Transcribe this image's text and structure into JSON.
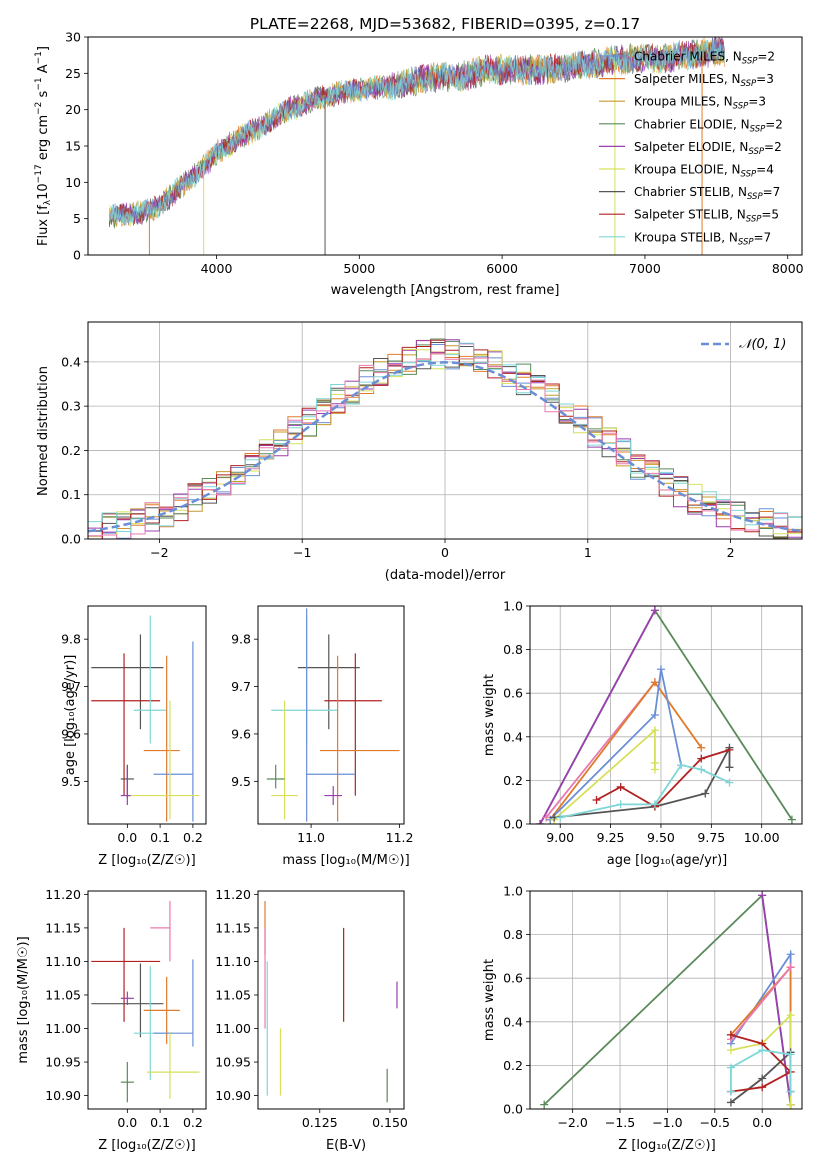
{
  "figure_title": "PLATE=2268, MJD=53682, FIBERID=0395, z=0.17",
  "colors": {
    "chabrier_miles": "#6a8fd6",
    "salpeter_miles": "#e07b2c",
    "kroupa_miles": "#c99a2e",
    "chabrier_elodie": "#5a8a5a",
    "salpeter_elodie": "#9a3fb0",
    "kroupa_elodie": "#d6e05a",
    "chabrier_stelib": "#555555",
    "salpeter_stelib": "#b22222",
    "kroupa_stelib": "#7fd6d6",
    "pink": "#e87ab0",
    "grid": "#b0b0b0"
  },
  "chart_data": [
    {
      "id": "spectrum",
      "type": "line",
      "title": "PLATE=2268, MJD=53682, FIBERID=0395, z=0.17",
      "xlabel": "wavelength [Angstrom, rest frame]",
      "ylabel": "Flux [f",
      "xlim": [
        3100,
        8100
      ],
      "ylim": [
        0,
        30
      ],
      "xticks": [
        4000,
        5000,
        6000,
        7000,
        8000
      ],
      "yticks": [
        0,
        5,
        10,
        15,
        20,
        25,
        30
      ],
      "grid": false,
      "legend_position": "top-right",
      "legend": [
        {
          "label": "Chabrier MILES, N",
          "sub": "SSP",
          "val": "=2",
          "color": "#6a8fd6"
        },
        {
          "label": "Salpeter MILES, N",
          "sub": "SSP",
          "val": "=3",
          "color": "#e07b2c"
        },
        {
          "label": "Kroupa MILES, N",
          "sub": "SSP",
          "val": "=3",
          "color": "#c99a2e"
        },
        {
          "label": "Chabrier ELODIE, N",
          "sub": "SSP",
          "val": "=2",
          "color": "#5a8a5a"
        },
        {
          "label": "Salpeter ELODIE, N",
          "sub": "SSP",
          "val": "=2",
          "color": "#9a3fb0"
        },
        {
          "label": "Kroupa ELODIE, N",
          "sub": "SSP",
          "val": "=4",
          "color": "#d6e05a"
        },
        {
          "label": "Chabrier STELIB, N",
          "sub": "SSP",
          "val": "=7",
          "color": "#555555"
        },
        {
          "label": "Salpeter STELIB, N",
          "sub": "SSP",
          "val": "=5",
          "color": "#b22222"
        },
        {
          "label": "Kroupa STELIB, N",
          "sub": "SSP",
          "val": "=7",
          "color": "#7fd6d6"
        }
      ],
      "continuum": {
        "x": [
          3250,
          3400,
          3550,
          3700,
          3850,
          4000,
          4150,
          4300,
          4500,
          4700,
          4900,
          5100,
          5300,
          5500,
          5700,
          5900,
          6100,
          6300,
          6500,
          6700,
          6900,
          7100,
          7300,
          7500
        ],
        "y": [
          5.3,
          5.6,
          6.2,
          8.5,
          11,
          14,
          16,
          17.5,
          20,
          21.5,
          22.5,
          23,
          23.5,
          24.5,
          24.5,
          25.5,
          25.5,
          25.5,
          26,
          26.5,
          27,
          27,
          27.5,
          28
        ]
      },
      "drops": [
        {
          "x": 3530,
          "color": "#e07b2c"
        },
        {
          "x": 3910,
          "color": "#d6e05a"
        },
        {
          "x": 4760,
          "color": "#555555"
        },
        {
          "x": 6790,
          "color": "#d6e05a"
        },
        {
          "x": 7400,
          "color": "#e07b2c"
        }
      ]
    },
    {
      "id": "residuals",
      "type": "histogram",
      "xlabel": "(data-model)/error",
      "ylabel": "Normed distribution",
      "xlim": [
        -2.5,
        2.5
      ],
      "ylim": [
        0,
        0.49
      ],
      "xticks": [
        -2,
        -1,
        0,
        1,
        2
      ],
      "yticks": [
        0.0,
        0.1,
        0.2,
        0.3,
        0.4
      ],
      "grid": true,
      "legend_position": "top-right",
      "legend": [
        {
          "label": "𝒩(0, 1)",
          "color": "#6a8fd6",
          "dash": true
        }
      ],
      "bin_width": 0.1
    },
    {
      "id": "age_vs_Z",
      "type": "errorbar",
      "xlabel": "Z [log₁₀(Z/Z☉)]",
      "ylabel": "age  [log₁₀(age/yr)]",
      "xlim": [
        -0.12,
        0.24
      ],
      "ylim": [
        9.41,
        9.87
      ],
      "xticks": [
        0.0,
        0.1,
        0.2
      ],
      "xticklabels": [
        "0.0",
        "0.1",
        "0.2"
      ],
      "yticks": [
        9.5,
        9.6,
        9.7,
        9.8
      ],
      "points": [
        {
          "x": 0.04,
          "y": 9.74,
          "xerr": [
            0.15,
            0.07
          ],
          "yerr": [
            0.13,
            0.07
          ],
          "color": "#555555"
        },
        {
          "x": -0.01,
          "y": 9.67,
          "xerr": [
            0.1,
            0.11
          ],
          "yerr": [
            0.2,
            0.1
          ],
          "color": "#b22222"
        },
        {
          "x": 0.07,
          "y": 9.65,
          "xerr": [
            0.05,
            0.05
          ],
          "yerr": [
            0.07,
            0.2
          ],
          "color": "#7fd6d6"
        },
        {
          "x": 0.12,
          "y": 9.565,
          "xerr": [
            0.07,
            0.04
          ],
          "yerr": [
            0.15,
            0.2
          ],
          "color": "#e07b2c"
        },
        {
          "x": 0.2,
          "y": 9.515,
          "xerr": [
            0.12,
            0.0
          ],
          "yerr": [
            0.1,
            0.28
          ],
          "color": "#6a8fd6"
        },
        {
          "x": 0.13,
          "y": 9.47,
          "xerr": [
            0.13,
            0.09
          ],
          "yerr": [
            0.05,
            0.2
          ],
          "color": "#d6e05a"
        },
        {
          "x": 0.0,
          "y": 9.505,
          "xerr": [
            0.02,
            0.02
          ],
          "yerr": [
            0.04,
            0.03
          ],
          "color": "#555555"
        },
        {
          "x": 0.0,
          "y": 9.47,
          "xerr": [
            0.02,
            0.01
          ],
          "yerr": [
            0.02,
            0.06
          ],
          "color": "#9a3fb0"
        }
      ]
    },
    {
      "id": "age_vs_mass",
      "type": "errorbar",
      "xlabel": "mass [log₁₀(M/M☉)]",
      "ylabel": "",
      "xlim": [
        10.88,
        11.21
      ],
      "ylim": [
        9.41,
        9.87
      ],
      "xticks": [
        11.0,
        11.2
      ],
      "xticklabels": [
        "11.0",
        "11.2"
      ],
      "yticks": [
        9.5,
        9.6,
        9.7,
        9.8
      ],
      "points": [
        {
          "x": 11.04,
          "y": 9.74,
          "xerr": [
            0.07,
            0.07
          ],
          "yerr": [
            0.13,
            0.07
          ],
          "color": "#555555"
        },
        {
          "x": 11.1,
          "y": 9.67,
          "xerr": [
            0.07,
            0.06
          ],
          "yerr": [
            0.2,
            0.1
          ],
          "color": "#b22222"
        },
        {
          "x": 10.99,
          "y": 9.65,
          "xerr": [
            0.08,
            0.07
          ],
          "yerr": [
            0.07,
            0.2
          ],
          "color": "#7fd6d6"
        },
        {
          "x": 11.06,
          "y": 9.565,
          "xerr": [
            0.04,
            0.14
          ],
          "yerr": [
            0.15,
            0.2
          ],
          "color": "#e07b2c"
        },
        {
          "x": 10.99,
          "y": 9.515,
          "xerr": [
            0.0,
            0.11
          ],
          "yerr": [
            0.1,
            0.35
          ],
          "color": "#6a8fd6"
        },
        {
          "x": 10.94,
          "y": 9.47,
          "xerr": [
            0.03,
            0.03
          ],
          "yerr": [
            0.05,
            0.2
          ],
          "color": "#d6e05a"
        },
        {
          "x": 10.92,
          "y": 9.505,
          "xerr": [
            0.02,
            0.02
          ],
          "yerr": [
            0.02,
            0.03
          ],
          "color": "#5a8a5a"
        },
        {
          "x": 11.05,
          "y": 9.47,
          "xerr": [
            0.02,
            0.02
          ],
          "yerr": [
            0.02,
            0.02
          ],
          "color": "#9a3fb0"
        }
      ]
    },
    {
      "id": "weight_vs_age",
      "type": "line",
      "xlabel": "age  [log₁₀(age/yr)]",
      "ylabel": "mass weight",
      "xlim": [
        8.85,
        10.2
      ],
      "ylim": [
        0,
        1
      ],
      "xticks": [
        9.0,
        9.25,
        9.5,
        9.75,
        10.0
      ],
      "xticklabels": [
        "9.00",
        "9.25",
        "9.50",
        "9.75",
        "10.00"
      ],
      "yticks": [
        0.0,
        0.2,
        0.4,
        0.6,
        0.8,
        1.0
      ],
      "grid": true,
      "series": [
        {
          "color": "#5a8a5a",
          "x": [
            8.9,
            9.47,
            10.15
          ],
          "y": [
            0,
            0.98,
            0.02
          ]
        },
        {
          "color": "#9a3fb0",
          "x": [
            8.9,
            9.47
          ],
          "y": [
            0,
            0.98
          ]
        },
        {
          "color": "#e87ab0",
          "x": [
            8.93,
            9.47
          ],
          "y": [
            0.03,
            0.65
          ]
        },
        {
          "color": "#e07b2c",
          "x": [
            8.95,
            9.47,
            9.7
          ],
          "y": [
            0.02,
            0.65,
            0.35
          ]
        },
        {
          "color": "#6a8fd6",
          "x": [
            8.95,
            9.47,
            9.5,
            9.6
          ],
          "y": [
            0.02,
            0.5,
            0.71,
            0.27
          ]
        },
        {
          "color": "#d6e05a",
          "x": [
            8.97,
            9.47,
            9.47,
            9.47
          ],
          "y": [
            0.02,
            0.43,
            0.28,
            0.25
          ]
        },
        {
          "color": "#555555",
          "x": [
            8.97,
            9.47,
            9.72,
            9.84,
            9.84
          ],
          "y": [
            0.03,
            0.08,
            0.14,
            0.35,
            0.26
          ]
        },
        {
          "color": "#b22222",
          "x": [
            9.18,
            9.3,
            9.47,
            9.7,
            9.84
          ],
          "y": [
            0.11,
            0.17,
            0.08,
            0.3,
            0.34
          ]
        },
        {
          "color": "#7fd6d6",
          "x": [
            9.0,
            9.3,
            9.47,
            9.6,
            9.7,
            9.84
          ],
          "y": [
            0.03,
            0.09,
            0.09,
            0.27,
            0.25,
            0.19
          ]
        }
      ]
    },
    {
      "id": "mass_vs_Z",
      "type": "errorbar",
      "xlabel": "Z [log₁₀(Z/Z☉)]",
      "ylabel": "mass [log₁₀(M/M☉)]",
      "xlim": [
        -0.12,
        0.24
      ],
      "ylim": [
        10.88,
        11.205
      ],
      "xticks": [
        0.0,
        0.1,
        0.2
      ],
      "xticklabels": [
        "0.0",
        "0.1",
        "0.2"
      ],
      "yticks": [
        10.9,
        10.95,
        11.0,
        11.05,
        11.1,
        11.15,
        11.2
      ],
      "points": [
        {
          "x": -0.01,
          "y": 11.1,
          "xerr": [
            0.1,
            0.11
          ],
          "yerr": [
            0.09,
            0.05
          ],
          "color": "#b22222"
        },
        {
          "x": 0.04,
          "y": 11.037,
          "xerr": [
            0.15,
            0.07
          ],
          "yerr": [
            0.05,
            0.06
          ],
          "color": "#555555"
        },
        {
          "x": 0.07,
          "y": 10.993,
          "xerr": [
            0.05,
            0.07
          ],
          "yerr": [
            0.07,
            0.1
          ],
          "color": "#7fd6d6"
        },
        {
          "x": 0.13,
          "y": 11.15,
          "xerr": [
            0.06,
            0.0
          ],
          "yerr": [
            0.05,
            0.04
          ],
          "color": "#e87ab0"
        },
        {
          "x": 0.12,
          "y": 11.027,
          "xerr": [
            0.07,
            0.04
          ],
          "yerr": [
            0.05,
            0.05
          ],
          "color": "#e07b2c"
        },
        {
          "x": 0.2,
          "y": 10.993,
          "xerr": [
            0.12,
            0.0
          ],
          "yerr": [
            0.02,
            0.11
          ],
          "color": "#6a8fd6"
        },
        {
          "x": 0.13,
          "y": 10.935,
          "xerr": [
            0.07,
            0.09
          ],
          "yerr": [
            0.04,
            0.06
          ],
          "color": "#d6e05a"
        },
        {
          "x": 0.0,
          "y": 10.92,
          "xerr": [
            0.02,
            0.02
          ],
          "yerr": [
            0.03,
            0.03
          ],
          "color": "#5a8a5a"
        },
        {
          "x": 0.0,
          "y": 11.045,
          "xerr": [
            0.02,
            0.02
          ],
          "yerr": [
            0.01,
            0.01
          ],
          "color": "#9a3fb0"
        }
      ]
    },
    {
      "id": "mass_vs_ebv",
      "type": "errorbar",
      "xlabel": "E(B-V)",
      "ylabel": "",
      "xlim": [
        0.103,
        0.155
      ],
      "ylim": [
        10.88,
        11.205
      ],
      "xticks": [
        0.125,
        0.15
      ],
      "xticklabels": [
        "0.125",
        "0.150"
      ],
      "yticks": [
        10.9,
        10.95,
        11.0,
        11.05,
        11.1,
        11.15,
        11.2
      ],
      "points": [
        {
          "x": 0.1055,
          "y": 11.15,
          "xerr": [
            0,
            0
          ],
          "yerr": [
            0.04,
            0.04
          ],
          "color": "#e07b2c"
        },
        {
          "x": 0.1055,
          "y": 11.1,
          "xerr": [
            0,
            0
          ],
          "yerr": [
            0.1,
            0.05
          ],
          "color": "#e87ab0"
        },
        {
          "x": 0.1063,
          "y": 11.0,
          "xerr": [
            0,
            0
          ],
          "yerr": [
            0.1,
            0.1
          ],
          "color": "#7fd6d6"
        },
        {
          "x": 0.111,
          "y": 10.95,
          "xerr": [
            0,
            0
          ],
          "yerr": [
            0.05,
            0.05
          ],
          "color": "#d6e05a"
        },
        {
          "x": 0.1335,
          "y": 11.06,
          "xerr": [
            0,
            0
          ],
          "yerr": [
            0.05,
            0.09
          ],
          "color": "#b22222"
        },
        {
          "x": 0.149,
          "y": 10.915,
          "xerr": [
            0,
            0
          ],
          "yerr": [
            0.025,
            0.025
          ],
          "color": "#5a8a5a"
        },
        {
          "x": 0.1525,
          "y": 11.05,
          "xerr": [
            0,
            0
          ],
          "yerr": [
            0.02,
            0.02
          ],
          "color": "#9a3fb0"
        }
      ]
    },
    {
      "id": "weight_vs_Z",
      "type": "line",
      "xlabel": "Z [log₁₀(Z/Z☉)]",
      "ylabel": "mass weight",
      "xlim": [
        -2.45,
        0.42
      ],
      "ylim": [
        0,
        1
      ],
      "xticks": [
        -2.0,
        -1.5,
        -1.0,
        -0.5,
        0.0
      ],
      "xticklabels": [
        "−2.0",
        "−1.5",
        "−1.0",
        "−0.5",
        "0.0"
      ],
      "yticks": [
        0.0,
        0.2,
        0.4,
        0.6,
        0.8,
        1.0
      ],
      "grid": true,
      "series": [
        {
          "color": "#5a8a5a",
          "x": [
            -2.3,
            0.0,
            0.3
          ],
          "y": [
            0.02,
            0.98,
            0.02
          ]
        },
        {
          "color": "#9a3fb0",
          "x": [
            0.0,
            0.3
          ],
          "y": [
            0.98,
            0.02
          ]
        },
        {
          "color": "#6a8fd6",
          "x": [
            -0.33,
            0.3,
            0.3
          ],
          "y": [
            0.3,
            0.71,
            0.02
          ]
        },
        {
          "color": "#e07b2c",
          "x": [
            -0.33,
            0.3,
            0.3
          ],
          "y": [
            0.34,
            0.65,
            0.02
          ]
        },
        {
          "color": "#e87ab0",
          "x": [
            -0.33,
            0.3
          ],
          "y": [
            0.32,
            0.65
          ]
        },
        {
          "color": "#d6e05a",
          "x": [
            -0.33,
            0.0,
            0.3,
            0.3
          ],
          "y": [
            0.27,
            0.3,
            0.43,
            0.02
          ]
        },
        {
          "color": "#555555",
          "x": [
            -0.33,
            0.0,
            0.3,
            0.3
          ],
          "y": [
            0.03,
            0.14,
            0.26,
            0.08
          ]
        },
        {
          "color": "#b22222",
          "x": [
            -0.33,
            0.0,
            0.3,
            0.0,
            -0.33
          ],
          "y": [
            0.34,
            0.3,
            0.17,
            0.1,
            0.08
          ]
        },
        {
          "color": "#7fd6d6",
          "x": [
            -0.33,
            -0.33,
            0.0,
            0.3,
            0.3
          ],
          "y": [
            0.08,
            0.19,
            0.27,
            0.25,
            0.08
          ]
        }
      ]
    }
  ]
}
